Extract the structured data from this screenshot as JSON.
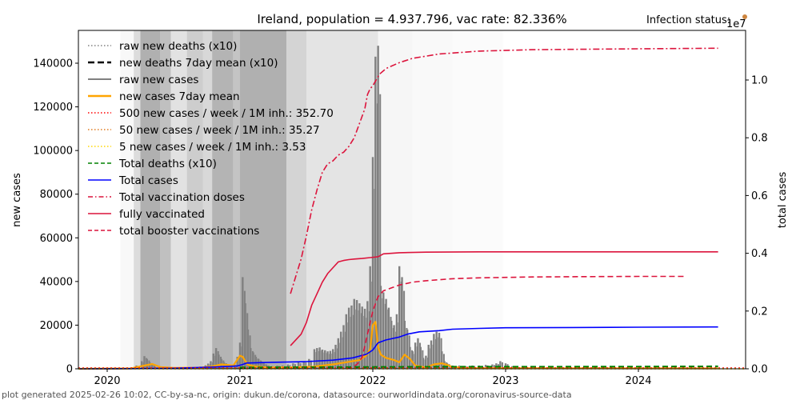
{
  "chart_data": {
    "type": "line",
    "title": "Ireland, population = 4.937.796, vac rate: 82.336%",
    "xlabel": "",
    "ylabel": "new cases",
    "ylabel_right": "total cases",
    "right_axis_multiplier": "1e7",
    "infection_status_label": "Infection status:",
    "infection_status_color": "#cd853f",
    "footer": "plot generated 2025-02-26 10:02, CC-by-sa-nc, origin: dukun.de/corona, datasource: ourworldindata.org/coronavirus-source-data",
    "xlim": [
      2019.78,
      2024.85
    ],
    "ylim": [
      0,
      155000
    ],
    "ylim_right": [
      0,
      1.17
    ],
    "grid": false,
    "legend_position": "upper-left",
    "x_ticks": [
      {
        "value": 2020,
        "label": "2020"
      },
      {
        "value": 2021,
        "label": "2021"
      },
      {
        "value": 2022,
        "label": "2022"
      },
      {
        "value": 2023,
        "label": "2023"
      },
      {
        "value": 2024,
        "label": "2024"
      }
    ],
    "y_ticks": [
      {
        "value": 0,
        "label": "0"
      },
      {
        "value": 20000,
        "label": "20000"
      },
      {
        "value": 40000,
        "label": "40000"
      },
      {
        "value": 60000,
        "label": "60000"
      },
      {
        "value": 80000,
        "label": "80000"
      },
      {
        "value": 100000,
        "label": "100000"
      },
      {
        "value": 120000,
        "label": "120000"
      },
      {
        "value": 140000,
        "label": "140000"
      }
    ],
    "y_ticks_right": [
      {
        "value": 0.0,
        "label": "0.0"
      },
      {
        "value": 0.2,
        "label": "0.2"
      },
      {
        "value": 0.4,
        "label": "0.4"
      },
      {
        "value": 0.6,
        "label": "0.6"
      },
      {
        "value": 0.8,
        "label": "0.8"
      },
      {
        "value": 1.0,
        "label": "1.0"
      }
    ],
    "legend": [
      {
        "label": "raw new deaths (x10)",
        "color": "#808080",
        "style": "dotted"
      },
      {
        "label": "new deaths 7day mean (x10)",
        "color": "#000000",
        "style": "dashed-bold"
      },
      {
        "label": "raw new cases",
        "color": "#808080",
        "style": "solid"
      },
      {
        "label": "new cases 7day mean",
        "color": "#ffa500",
        "style": "solid-bold"
      },
      {
        "label": "500 new cases / week / 1M inh.: 352.70",
        "color": "#ff0000",
        "style": "dotted"
      },
      {
        "label": "50 new cases / week / 1M inh.: 35.27",
        "color": "#e07b20",
        "style": "dotted"
      },
      {
        "label": "5 new cases / week / 1M inh.: 3.53",
        "color": "#ffd700",
        "style": "dotted"
      },
      {
        "label": "Total deaths (x10)",
        "color": "#008000",
        "style": "dashed"
      },
      {
        "label": "Total cases",
        "color": "#0000ff",
        "style": "solid"
      },
      {
        "label": "Total vaccination doses",
        "color": "#dc143c",
        "style": "dashdot"
      },
      {
        "label": "fully vaccinated",
        "color": "#dc143c",
        "style": "solid"
      },
      {
        "label": "total booster vaccinations",
        "color": "#dc143c",
        "style": "dashed"
      }
    ],
    "thresholds": [
      {
        "name": "500 per week per 1M",
        "value": 352.7,
        "color": "#ff0000"
      },
      {
        "name": "50 per week per 1M",
        "value": 35.27,
        "color": "#e07b20"
      },
      {
        "name": "5 per week per 1M",
        "value": 3.53,
        "color": "#ffd700"
      }
    ],
    "background_bands": [
      {
        "x0": 2020.1,
        "x1": 2020.2,
        "shade": "#f8f8f8"
      },
      {
        "x0": 2020.2,
        "x1": 2020.25,
        "shade": "#dcdcdc"
      },
      {
        "x0": 2020.25,
        "x1": 2020.4,
        "shade": "#b0b0b0"
      },
      {
        "x0": 2020.4,
        "x1": 2020.48,
        "shade": "#c0c0c0"
      },
      {
        "x0": 2020.48,
        "x1": 2020.6,
        "shade": "#e2e2e2"
      },
      {
        "x0": 2020.6,
        "x1": 2020.72,
        "shade": "#cdcdcd"
      },
      {
        "x0": 2020.72,
        "x1": 2020.79,
        "shade": "#d8d8d8"
      },
      {
        "x0": 2020.79,
        "x1": 2020.95,
        "shade": "#b4b4b4"
      },
      {
        "x0": 2020.95,
        "x1": 2021.0,
        "shade": "#c4c4c4"
      },
      {
        "x0": 2021.0,
        "x1": 2021.35,
        "shade": "#b0b0b0"
      },
      {
        "x0": 2021.35,
        "x1": 2021.5,
        "shade": "#d4d4d4"
      },
      {
        "x0": 2021.5,
        "x1": 2022.04,
        "shade": "#e4e4e4"
      },
      {
        "x0": 2022.04,
        "x1": 2022.3,
        "shade": "#f6f6f6"
      },
      {
        "x0": 2022.3,
        "x1": 2022.6,
        "shade": "#f9f9f9"
      },
      {
        "x0": 2022.6,
        "x1": 2022.98,
        "shade": "#fbfbfb"
      }
    ],
    "series": [
      {
        "name": "raw new cases",
        "type": "bar",
        "color": "#808080",
        "x": [
          2020.18,
          2020.22,
          2020.26,
          2020.28,
          2020.3,
          2020.32,
          2020.34,
          2020.36,
          2020.38,
          2020.4,
          2020.44,
          2020.5,
          2020.6,
          2020.66,
          2020.7,
          2020.74,
          2020.76,
          2020.78,
          2020.8,
          2020.82,
          2020.84,
          2020.86,
          2020.88,
          2020.9,
          2020.92,
          2020.94,
          2020.96,
          2020.98,
          2021.0,
          2021.02,
          2021.04,
          2021.06,
          2021.08,
          2021.1,
          2021.12,
          2021.14,
          2021.16,
          2021.18,
          2021.2,
          2021.24,
          2021.28,
          2021.32,
          2021.36,
          2021.4,
          2021.44,
          2021.48,
          2021.52,
          2021.56,
          2021.58,
          2021.6,
          2021.62,
          2021.64,
          2021.66,
          2021.68,
          2021.7,
          2021.72,
          2021.74,
          2021.76,
          2021.78,
          2021.8,
          2021.82,
          2021.84,
          2021.86,
          2021.88,
          2021.9,
          2021.92,
          2021.94,
          2021.96,
          2021.98,
          2022.0,
          2022.02,
          2022.04,
          2022.06,
          2022.08,
          2022.1,
          2022.12,
          2022.14,
          2022.16,
          2022.18,
          2022.2,
          2022.22,
          2022.24,
          2022.26,
          2022.28,
          2022.3,
          2022.32,
          2022.34,
          2022.36,
          2022.38,
          2022.4,
          2022.42,
          2022.44,
          2022.46,
          2022.48,
          2022.5,
          2022.52,
          2022.54,
          2022.56,
          2022.6,
          2022.65,
          2022.7,
          2022.75,
          2022.8,
          2022.85,
          2022.9,
          2022.93,
          2022.96,
          2023.0,
          2023.05
        ],
        "values": [
          500,
          1500,
          3500,
          5800,
          4500,
          3000,
          1800,
          900,
          500,
          400,
          300,
          200,
          300,
          600,
          1000,
          1600,
          2400,
          3500,
          7000,
          9500,
          6500,
          4500,
          3000,
          2000,
          1400,
          1000,
          2000,
          5500,
          12000,
          42000,
          30000,
          18000,
          9500,
          7500,
          5500,
          4500,
          3500,
          2500,
          1800,
          1200,
          1500,
          1500,
          2000,
          2500,
          3000,
          3500,
          4500,
          9000,
          9500,
          9800,
          8800,
          8500,
          8000,
          8200,
          9000,
          11000,
          14000,
          17000,
          20000,
          25000,
          28000,
          29000,
          32000,
          31500,
          30000,
          28500,
          27500,
          31000,
          47000,
          97000,
          143000,
          148000,
          38000,
          35000,
          32000,
          28000,
          22000,
          20000,
          25000,
          47000,
          42000,
          22000,
          18000,
          10000,
          8000,
          12000,
          14000,
          10000,
          5000,
          6000,
          11000,
          13000,
          16000,
          17000,
          16500,
          8000,
          3500,
          2500,
          1500,
          1500,
          1200,
          1500,
          1500,
          1800,
          2000,
          2500,
          3500,
          2500,
          1200
        ]
      },
      {
        "name": "new cases 7day mean",
        "type": "line",
        "color": "#ffa500",
        "x": [
          2019.78,
          2020.18,
          2020.28,
          2020.34,
          2020.4,
          2020.5,
          2020.7,
          2020.8,
          2020.86,
          2020.95,
          2021.0,
          2021.02,
          2021.04,
          2021.06,
          2021.1,
          2021.2,
          2021.4,
          2021.55,
          2021.7,
          2021.8,
          2021.9,
          2021.95,
          2021.98,
          2022.0,
          2022.02,
          2022.04,
          2022.06,
          2022.1,
          2022.16,
          2022.2,
          2022.24,
          2022.28,
          2022.32,
          2022.4,
          2022.46,
          2022.52,
          2022.56,
          2022.6,
          2022.7,
          2022.8,
          2022.9,
          2023.0,
          2024.6
        ],
        "values": [
          0,
          200,
          1500,
          2200,
          800,
          400,
          500,
          1200,
          2000,
          1500,
          6000,
          5500,
          3500,
          1800,
          1200,
          600,
          700,
          1000,
          2000,
          3000,
          4000,
          6000,
          9000,
          20000,
          21500,
          10000,
          6500,
          5000,
          4000,
          3000,
          6500,
          4500,
          1500,
          600,
          2000,
          2500,
          1800,
          800,
          400,
          300,
          300,
          300,
          200
        ]
      },
      {
        "name": "Total cases",
        "type": "line",
        "axis": "right",
        "color": "#0000ff",
        "x": [
          2019.78,
          2020.18,
          2020.5,
          2020.85,
          2020.98,
          2021.02,
          2021.05,
          2021.2,
          2021.5,
          2021.7,
          2021.85,
          2021.95,
          2022.0,
          2022.04,
          2022.1,
          2022.2,
          2022.26,
          2022.35,
          2022.5,
          2022.6,
          2022.8,
          2023.0,
          2023.5,
          2024.0,
          2024.6
        ],
        "values": [
          0,
          0.0005,
          0.002,
          0.007,
          0.01,
          0.015,
          0.02,
          0.022,
          0.025,
          0.03,
          0.038,
          0.05,
          0.065,
          0.09,
          0.1,
          0.11,
          0.12,
          0.128,
          0.132,
          0.137,
          0.14,
          0.142,
          0.143,
          0.144,
          0.145
        ]
      },
      {
        "name": "Total vaccination doses",
        "type": "line",
        "axis": "right",
        "style": "dashdot",
        "color": "#dc143c",
        "x": [
          2021.38,
          2021.42,
          2021.46,
          2021.5,
          2021.54,
          2021.58,
          2021.62,
          2021.66,
          2021.7,
          2021.74,
          2021.78,
          2021.82,
          2021.86,
          2021.9,
          2021.94,
          2021.96,
          2021.98,
          2022.0,
          2022.05,
          2022.1,
          2022.2,
          2022.3,
          2022.5,
          2022.8,
          2023.2,
          2024.0,
          2024.6
        ],
        "values": [
          0.26,
          0.32,
          0.38,
          0.46,
          0.55,
          0.62,
          0.68,
          0.71,
          0.72,
          0.74,
          0.75,
          0.77,
          0.8,
          0.85,
          0.9,
          0.95,
          0.97,
          0.98,
          1.02,
          1.04,
          1.06,
          1.075,
          1.09,
          1.1,
          1.105,
          1.108,
          1.11
        ]
      },
      {
        "name": "fully vaccinated",
        "type": "line",
        "axis": "right",
        "color": "#dc143c",
        "x": [
          2021.38,
          2021.42,
          2021.46,
          2021.5,
          2021.54,
          2021.58,
          2021.62,
          2021.66,
          2021.7,
          2021.74,
          2021.78,
          2021.82,
          2021.86,
          2021.92,
          2021.98,
          2022.04,
          2022.08,
          2022.2,
          2022.4,
          2022.8,
          2023.5,
          2024.0,
          2024.6
        ],
        "values": [
          0.08,
          0.1,
          0.12,
          0.16,
          0.22,
          0.26,
          0.3,
          0.33,
          0.35,
          0.37,
          0.375,
          0.378,
          0.38,
          0.382,
          0.385,
          0.388,
          0.398,
          0.402,
          0.404,
          0.405,
          0.405,
          0.405,
          0.405
        ]
      },
      {
        "name": "total booster vaccinations",
        "type": "line",
        "axis": "right",
        "style": "dashed",
        "color": "#dc143c",
        "x": [
          2021.8,
          2021.84,
          2021.88,
          2021.92,
          2021.96,
          2022.0,
          2022.04,
          2022.08,
          2022.14,
          2022.2,
          2022.3,
          2022.4,
          2022.6,
          2022.8,
          2023.2,
          2023.6,
          2024.0,
          2024.35
        ],
        "values": [
          0.0,
          0.005,
          0.015,
          0.04,
          0.12,
          0.2,
          0.25,
          0.27,
          0.28,
          0.29,
          0.3,
          0.305,
          0.312,
          0.315,
          0.318,
          0.319,
          0.32,
          0.32
        ]
      },
      {
        "name": "Total deaths (x10)",
        "type": "line",
        "style": "dashed",
        "color": "#008000",
        "x": [
          2021.0,
          2021.5,
          2022.0,
          2022.5,
          2023.0,
          2024.0,
          2024.6
        ],
        "values": [
          600,
          700,
          800,
          900,
          900,
          1000,
          1100
        ]
      }
    ]
  }
}
